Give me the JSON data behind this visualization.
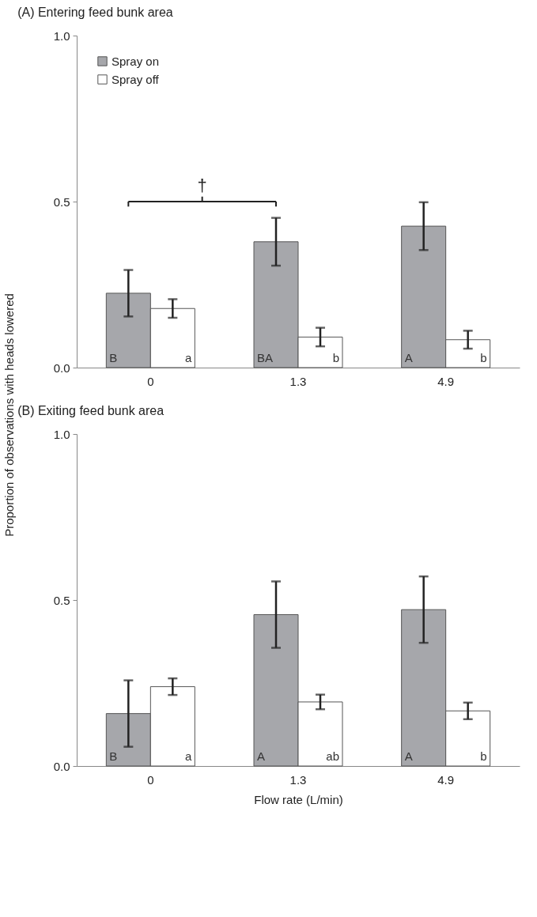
{
  "chart_data": [
    {
      "type": "bar",
      "title": "(A) Entering feed bunk area",
      "ylabel": "Proportion of observations with heads lowered",
      "categories": [
        "0",
        "1.3",
        "4.9"
      ],
      "series": [
        {
          "name": "Spray on",
          "color": "#a6a7ab",
          "values": [
            0.224,
            0.379,
            0.426
          ],
          "errors": [
            0.07,
            0.072,
            0.072
          ],
          "value_labels": [
            "B",
            "BA",
            "A"
          ]
        },
        {
          "name": "Spray off",
          "color": "#ffffff",
          "values": [
            0.178,
            0.092,
            0.084
          ],
          "errors": [
            0.028,
            0.028,
            0.027
          ],
          "value_labels": [
            "a",
            "b",
            "b"
          ]
        }
      ],
      "annotations": [
        "†"
      ],
      "ylim": [
        0,
        1
      ],
      "yticks": [
        {
          "value": 0,
          "label": "0.0"
        },
        {
          "value": 0.5,
          "label": "0.5"
        },
        {
          "value": 1,
          "label": "1.0"
        }
      ],
      "grid": false,
      "legend": "top left"
    },
    {
      "type": "bar",
      "title": "(B) Exiting feed bunk area",
      "xlabel": "Flow rate (L/min)",
      "categories": [
        "0",
        "1.3",
        "4.9"
      ],
      "series": [
        {
          "name": "Spray on",
          "color": "#a6a7ab",
          "values": [
            0.158,
            0.456,
            0.471
          ],
          "errors": [
            0.1,
            0.1,
            0.1
          ],
          "value_labels": [
            "B",
            "A",
            "A"
          ]
        },
        {
          "name": "Spray off",
          "color": "#ffffff",
          "values": [
            0.239,
            0.193,
            0.166
          ],
          "errors": [
            0.025,
            0.022,
            0.025
          ],
          "value_labels": [
            "a",
            "ab",
            "b"
          ]
        }
      ],
      "ylim": [
        0,
        1
      ],
      "yticks": [
        {
          "value": 0,
          "label": "0.0"
        },
        {
          "value": 0.5,
          "label": "0.5"
        },
        {
          "value": 1,
          "label": "1.0"
        }
      ],
      "grid": false,
      "legend": false
    }
  ]
}
